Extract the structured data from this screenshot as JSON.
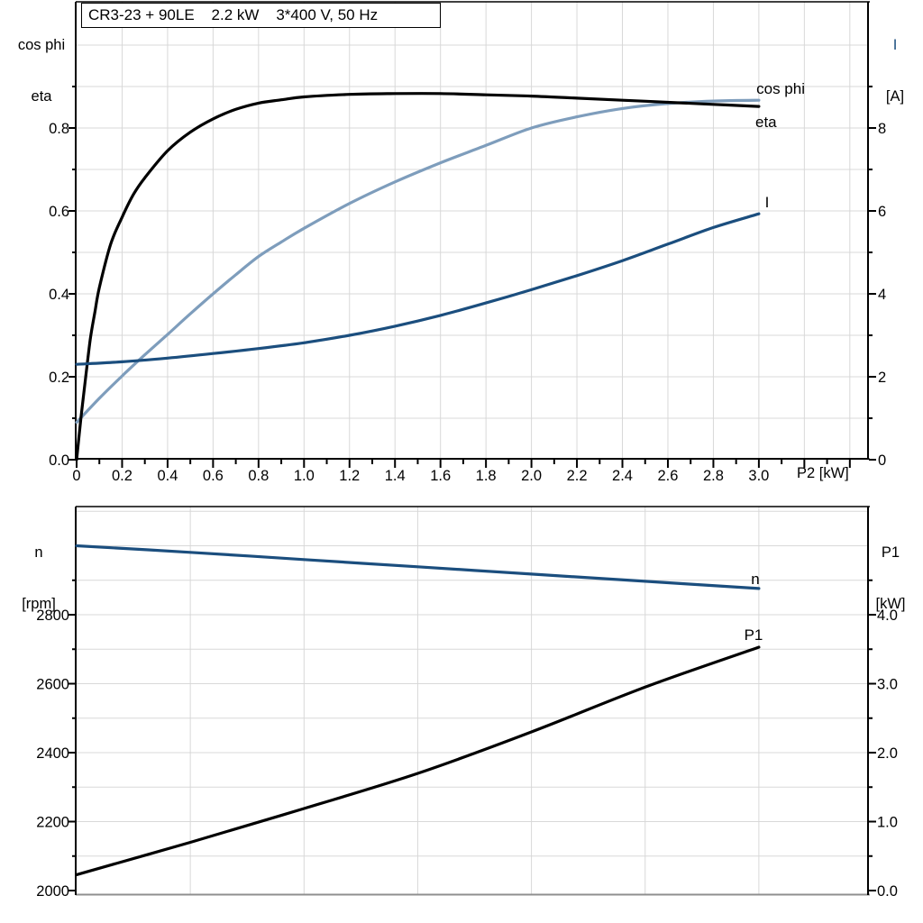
{
  "title": "CR3-23 + 90LE    2.2 kW    3*400 V, 50 Hz",
  "colors": {
    "curve_black": "#000000",
    "curve_navy": "#1b4e7e",
    "curve_lightblue": "#7e9dbc",
    "grid": "#d8d8d8",
    "axis": "#000000",
    "frame_gray": "#8f8f8f",
    "text": "#000000"
  },
  "chart_data": [
    {
      "type": "line",
      "title": "CR3-23 + 90LE    2.2 kW    3*400 V, 50 Hz",
      "xlabel": "P2 [kW]",
      "x_axis": {
        "range": [
          0,
          3.48
        ],
        "tick_values": [
          0,
          0.2,
          0.4,
          0.6,
          0.8,
          1.0,
          1.2,
          1.4,
          1.6,
          1.8,
          2.0,
          2.2,
          2.4,
          2.6,
          2.8,
          3.0
        ],
        "tick_labels": [
          "0",
          "0.2",
          "0.4",
          "0.6",
          "0.8",
          "1.0",
          "1.2",
          "1.4",
          "1.6",
          "1.8",
          "2.0",
          "2.2",
          "2.4",
          "2.6",
          "2.8",
          "3.0"
        ],
        "minor_step": 0.1,
        "grid_step": 0.2
      },
      "left_axis": {
        "label_lines": [
          "cos phi",
          "eta"
        ],
        "range": [
          0,
          1.09
        ],
        "tick_values": [
          0,
          0.2,
          0.4,
          0.6,
          0.8
        ],
        "tick_labels": [
          "0.0",
          "0.2",
          "0.4",
          "0.6",
          "0.8"
        ],
        "minor_step": 0.1,
        "grid_step": 0.1
      },
      "right_axis": {
        "label_lines": [
          "I",
          "[A]"
        ],
        "range": [
          0,
          10.9
        ],
        "tick_values": [
          0,
          2,
          4,
          6,
          8
        ],
        "tick_labels": [
          "0",
          "2",
          "4",
          "6",
          "8"
        ],
        "minor_step": 1
      },
      "series": [
        {
          "name": "eta",
          "axis": "left",
          "color_key": "curve_black",
          "label": "eta",
          "points": [
            [
              0,
              0
            ],
            [
              0.02,
              0.105
            ],
            [
              0.04,
              0.2
            ],
            [
              0.06,
              0.29
            ],
            [
              0.08,
              0.355
            ],
            [
              0.1,
              0.415
            ],
            [
              0.15,
              0.52
            ],
            [
              0.2,
              0.585
            ],
            [
              0.25,
              0.64
            ],
            [
              0.3,
              0.68
            ],
            [
              0.4,
              0.745
            ],
            [
              0.5,
              0.79
            ],
            [
              0.6,
              0.822
            ],
            [
              0.7,
              0.845
            ],
            [
              0.8,
              0.86
            ],
            [
              0.9,
              0.868
            ],
            [
              1.0,
              0.875
            ],
            [
              1.2,
              0.881
            ],
            [
              1.4,
              0.883
            ],
            [
              1.6,
              0.883
            ],
            [
              1.8,
              0.88
            ],
            [
              2.0,
              0.877
            ],
            [
              2.2,
              0.872
            ],
            [
              2.4,
              0.867
            ],
            [
              2.6,
              0.862
            ],
            [
              2.8,
              0.857
            ],
            [
              3.0,
              0.852
            ]
          ]
        },
        {
          "name": "cos_phi",
          "axis": "left",
          "color_key": "curve_lightblue",
          "label": "cos phi",
          "points": [
            [
              0,
              0.09
            ],
            [
              0.1,
              0.148
            ],
            [
              0.2,
              0.202
            ],
            [
              0.3,
              0.253
            ],
            [
              0.4,
              0.302
            ],
            [
              0.5,
              0.352
            ],
            [
              0.6,
              0.4
            ],
            [
              0.7,
              0.446
            ],
            [
              0.8,
              0.49
            ],
            [
              0.9,
              0.525
            ],
            [
              1.0,
              0.558
            ],
            [
              1.2,
              0.618
            ],
            [
              1.4,
              0.67
            ],
            [
              1.6,
              0.716
            ],
            [
              1.8,
              0.758
            ],
            [
              2.0,
              0.8
            ],
            [
              2.2,
              0.827
            ],
            [
              2.4,
              0.847
            ],
            [
              2.6,
              0.859
            ],
            [
              2.8,
              0.865
            ],
            [
              3.0,
              0.867
            ]
          ]
        },
        {
          "name": "I",
          "axis": "right",
          "color_key": "curve_navy",
          "label": "I",
          "points": [
            [
              0,
              2.3
            ],
            [
              0.2,
              2.36
            ],
            [
              0.4,
              2.45
            ],
            [
              0.6,
              2.56
            ],
            [
              0.8,
              2.68
            ],
            [
              1.0,
              2.82
            ],
            [
              1.2,
              3.0
            ],
            [
              1.4,
              3.22
            ],
            [
              1.6,
              3.48
            ],
            [
              1.8,
              3.78
            ],
            [
              2.0,
              4.1
            ],
            [
              2.2,
              4.44
            ],
            [
              2.4,
              4.8
            ],
            [
              2.6,
              5.2
            ],
            [
              2.8,
              5.6
            ],
            [
              3.0,
              5.93
            ]
          ]
        }
      ]
    },
    {
      "type": "line",
      "xlabel": "",
      "x_axis": {
        "range": [
          0,
          3.48
        ],
        "grid_values": [
          0.5,
          1.0,
          1.5,
          2.0,
          2.5,
          3.0
        ]
      },
      "left_axis": {
        "label_lines": [
          "n",
          "[rpm]"
        ],
        "range": [
          1984,
          3114
        ],
        "tick_values": [
          2000,
          2200,
          2400,
          2600,
          2800
        ],
        "tick_labels": [
          "2000",
          "2200",
          "2400",
          "2600",
          "2800"
        ],
        "minor_step": 100
      },
      "right_axis": {
        "label_lines": [
          "P1",
          "[kW]"
        ],
        "range": [
          -0.08,
          5.57
        ],
        "tick_values": [
          0,
          1,
          2,
          3,
          4
        ],
        "tick_labels": [
          "0.0",
          "1.0",
          "2.0",
          "3.0",
          "4.0"
        ],
        "minor_step": 0.5
      },
      "series": [
        {
          "name": "n",
          "axis": "left",
          "color_key": "curve_navy",
          "label": "n",
          "points": [
            [
              0,
              3000
            ],
            [
              0.5,
              2981
            ],
            [
              1.0,
              2960
            ],
            [
              1.5,
              2939
            ],
            [
              2.0,
              2918
            ],
            [
              2.5,
              2897
            ],
            [
              3.0,
              2876
            ]
          ]
        },
        {
          "name": "P1",
          "axis": "right",
          "color_key": "curve_black",
          "label": "P1",
          "points": [
            [
              0,
              0.23
            ],
            [
              0.5,
              0.7
            ],
            [
              1.0,
              1.19
            ],
            [
              1.5,
              1.7
            ],
            [
              2.0,
              2.3
            ],
            [
              2.5,
              2.95
            ],
            [
              3.0,
              3.53
            ]
          ]
        }
      ]
    }
  ]
}
